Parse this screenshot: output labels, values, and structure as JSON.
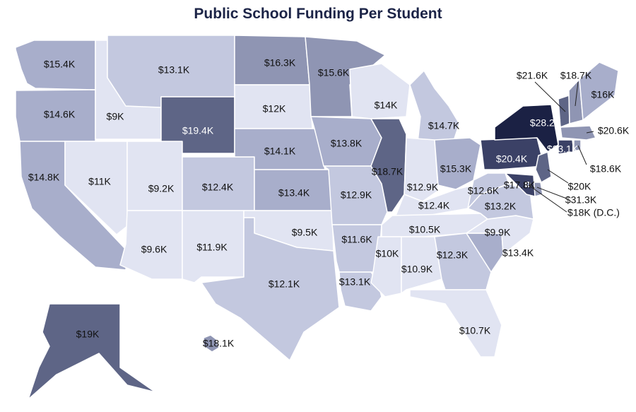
{
  "title": "Public School Funding Per Student",
  "colors": {
    "tier_1": "#e1e4f2",
    "tier_2": "#c3c8df",
    "tier_3": "#a8aecb",
    "tier_4": "#8f95b3",
    "tier_5": "#5e6586",
    "tier_6": "#3b4166",
    "tier_7": "#1b2144",
    "label": "#111111",
    "title": "#1c2447"
  },
  "states": [
    {
      "id": "WA",
      "value": "$15.4K"
    },
    {
      "id": "OR",
      "value": "$14.6K"
    },
    {
      "id": "CA",
      "value": "$14.8K"
    },
    {
      "id": "ID",
      "value": "$9K"
    },
    {
      "id": "NV",
      "value": "$11K"
    },
    {
      "id": "MT",
      "value": "$13.1K"
    },
    {
      "id": "WY",
      "value": "$19.4K"
    },
    {
      "id": "UT",
      "value": "$9.2K"
    },
    {
      "id": "CO",
      "value": "$12.4K"
    },
    {
      "id": "AZ",
      "value": "$9.6K"
    },
    {
      "id": "NM",
      "value": "$11.9K"
    },
    {
      "id": "ND",
      "value": "$16.3K"
    },
    {
      "id": "SD",
      "value": "$12K"
    },
    {
      "id": "NE",
      "value": "$14.1K"
    },
    {
      "id": "KS",
      "value": "$13.4K"
    },
    {
      "id": "OK",
      "value": "$9.5K"
    },
    {
      "id": "TX",
      "value": "$12.1K"
    },
    {
      "id": "MN",
      "value": "$15.6K"
    },
    {
      "id": "IA",
      "value": "$13.8K"
    },
    {
      "id": "MO",
      "value": "$12.9K"
    },
    {
      "id": "AR",
      "value": "$11.6K"
    },
    {
      "id": "LA",
      "value": "$13.1K"
    },
    {
      "id": "WI",
      "value": "$14K"
    },
    {
      "id": "IL",
      "value": "$18.7K"
    },
    {
      "id": "MI",
      "value": "$14.7K"
    },
    {
      "id": "IN",
      "value": "$12.9K"
    },
    {
      "id": "OH",
      "value": "$15.3K"
    },
    {
      "id": "KY",
      "value": "$12.4K"
    },
    {
      "id": "TN",
      "value": "$10.5K"
    },
    {
      "id": "MS",
      "value": "$10K"
    },
    {
      "id": "AL",
      "value": "$10.9K"
    },
    {
      "id": "GA",
      "value": "$12.3K"
    },
    {
      "id": "FL",
      "value": "$10.7K"
    },
    {
      "id": "SC",
      "value": "$13.4K"
    },
    {
      "id": "NC",
      "value": "$9.9K"
    },
    {
      "id": "VA",
      "value": "$13.2K"
    },
    {
      "id": "WV",
      "value": "$12.6K"
    },
    {
      "id": "PA",
      "value": "$20.4K"
    },
    {
      "id": "NY",
      "value": "$28.2K"
    },
    {
      "id": "VT",
      "value": "$21.6K"
    },
    {
      "id": "NH",
      "value": "$18.7K"
    },
    {
      "id": "ME",
      "value": "$16K"
    },
    {
      "id": "MA",
      "value": "$20.6K"
    },
    {
      "id": "CT",
      "value": "$23.1K"
    },
    {
      "id": "RI",
      "value": "$18.6K"
    },
    {
      "id": "NJ",
      "value": "$20K"
    },
    {
      "id": "DE",
      "value": "$17.8K"
    },
    {
      "id": "MD",
      "value": "$31.3K"
    },
    {
      "id": "DC",
      "value": "$18K (D.C.)"
    },
    {
      "id": "AK",
      "value": "$19K"
    },
    {
      "id": "HI",
      "value": "$18.1K"
    }
  ]
}
